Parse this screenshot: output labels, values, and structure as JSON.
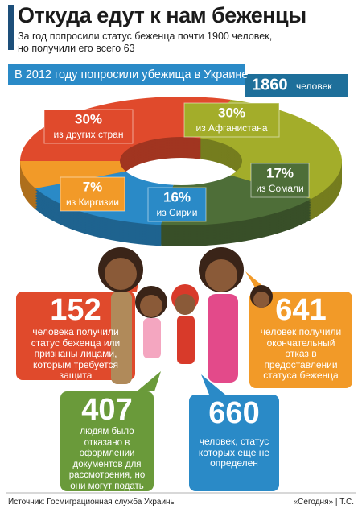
{
  "header": {
    "title": "Откуда едут к нам беженцы",
    "subtitle": "За год попросили статус беженца почти 1900 человек, но получили его всего 63"
  },
  "banner": {
    "text": "В 2012 году попросили убежища в Украине",
    "number": 1860,
    "unit": "человек"
  },
  "chart_data": {
    "type": "pie",
    "categories": [
      "из других стран",
      "из Афганистана",
      "из Сомали",
      "из Сирии",
      "из Киргизии"
    ],
    "values": [
      30,
      30,
      17,
      16,
      7
    ],
    "value_labels": [
      "30%",
      "30%",
      "17%",
      "16%",
      "7%"
    ],
    "colors": [
      "#e04a2c",
      "#a3ad2a",
      "#4e6e38",
      "#2a8ac7",
      "#f29a28"
    ]
  },
  "stats": [
    {
      "number": 152,
      "text": "человека получили статус беженца или признаны лицами, которым требуется защита"
    },
    {
      "number": 641,
      "text": "человек получили окончательный отказ в предоставлении статуса беженца"
    },
    {
      "number": 407,
      "text": "людям было отказано в оформлении документов для рассмотрения, но они могут подать прошение снова"
    },
    {
      "number": 660,
      "text": "человек, статус которых еще не определен"
    }
  ],
  "footer": {
    "source": "Источник: Госмиграционная служба Украины",
    "credit": "«Сегодня» | Т.С."
  }
}
